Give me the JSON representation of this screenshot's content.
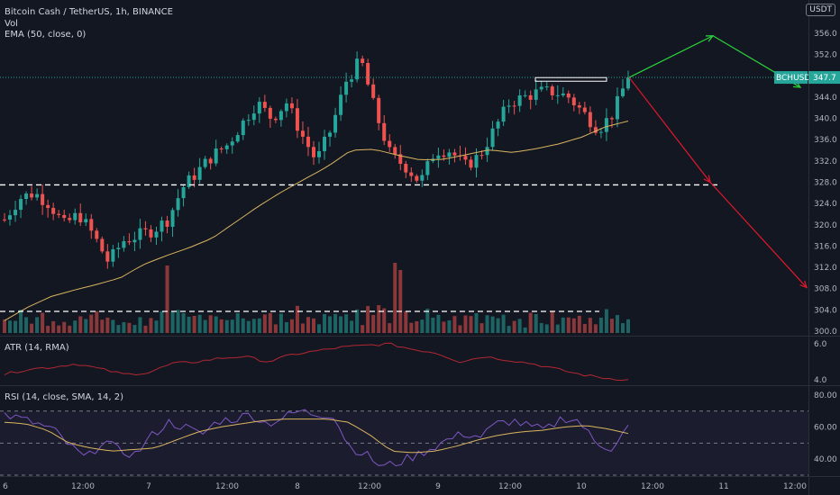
{
  "header": {
    "title": "Bitcoin Cash / TetherUS, 1h, BINANCE",
    "vol_label": "Vol",
    "ema_label": "EMA (50, close, 0)",
    "currency_button": "USDT"
  },
  "panes": {
    "atr_label": "ATR (14, RMA)",
    "rsi_label": "RSI (14, close, SMA, 14, 2)"
  },
  "symbol_tag": {
    "symbol": "BCHUSDT",
    "price": "347.7",
    "color": "#26a69a"
  },
  "colors": {
    "up": "#26a69a",
    "down": "#ef5350",
    "ema": "#d9b55f",
    "atr": "#b22833",
    "rsi": "#7e57c2",
    "rsi_ma": "#d9b55f",
    "green_arrow": "#2bd13b",
    "red_arrow": "#e0182b"
  },
  "chart_data": {
    "type": "candlestick",
    "y_ticks": [
      "356.0",
      "352.0",
      "348.0",
      "344.0",
      "340.0",
      "336.0",
      "332.0",
      "328.0",
      "324.0",
      "320.0",
      "316.0",
      "312.0",
      "308.0",
      "304.0",
      "300.0"
    ],
    "y_range": [
      300,
      357
    ],
    "x_ticks": [
      "6",
      "12:00",
      "7",
      "12:00",
      "8",
      "12:00",
      "9",
      "12:00",
      "10",
      "12:00",
      "11",
      "12:00"
    ],
    "atr_ticks": [
      "6.0",
      "4.0"
    ],
    "rsi_ticks": [
      "80.00",
      "60.00",
      "40.00"
    ],
    "support_level": 327.5,
    "resistance_box": [
      346.9,
      347.5
    ],
    "current_price": 347.7,
    "projection_up_target": 355.7,
    "projection_down_mid": 328.0,
    "projection_down_target": 308.2,
    "ema_values": [
      302,
      304.5,
      306.5,
      307.7,
      308.8,
      310,
      312.5,
      314.2,
      315.7,
      317.5,
      320.5,
      323.5,
      326.2,
      328.6,
      331,
      334,
      334.2,
      333.1,
      332.2,
      332.3,
      333.2,
      334.1,
      333.6,
      334.3,
      335.2,
      336.5,
      338.4,
      339.5
    ],
    "closes": [
      321,
      325,
      326,
      324,
      320,
      322,
      318,
      313,
      317,
      318,
      319,
      321,
      327,
      330,
      333,
      335,
      339,
      343,
      340,
      343,
      337,
      332,
      338,
      347,
      351,
      341,
      333,
      331,
      328,
      334,
      334,
      331,
      333,
      338,
      343,
      344,
      345,
      345,
      344,
      341,
      338,
      341,
      348
    ],
    "atr_values": [
      4.3,
      4.6,
      4.7,
      4.9,
      4.6,
      4.3,
      4.4,
      4.9,
      5.0,
      5.2,
      5.3,
      5.0,
      5.4,
      5.6,
      5.8,
      5.9,
      6.0,
      5.7,
      5.5,
      5.0,
      5.3,
      5.1,
      4.9,
      4.6,
      4.3,
      4.1,
      4.0
    ],
    "rsi_values": [
      68,
      65,
      62,
      58,
      48,
      40,
      52,
      45,
      43,
      55,
      63,
      60,
      55,
      64,
      65,
      68,
      62,
      66,
      70,
      68,
      68,
      48,
      43,
      35,
      38,
      42,
      47,
      52,
      56,
      54,
      62,
      64,
      60,
      58,
      66,
      64,
      50,
      47,
      60
    ],
    "rsi_ma_values": [
      63,
      62,
      58,
      50,
      47,
      45,
      46,
      47,
      52,
      57,
      60,
      62,
      64,
      65,
      65,
      65,
      63,
      55,
      45,
      44,
      45,
      48,
      52,
      55,
      57,
      58,
      60,
      61,
      59,
      56
    ]
  }
}
